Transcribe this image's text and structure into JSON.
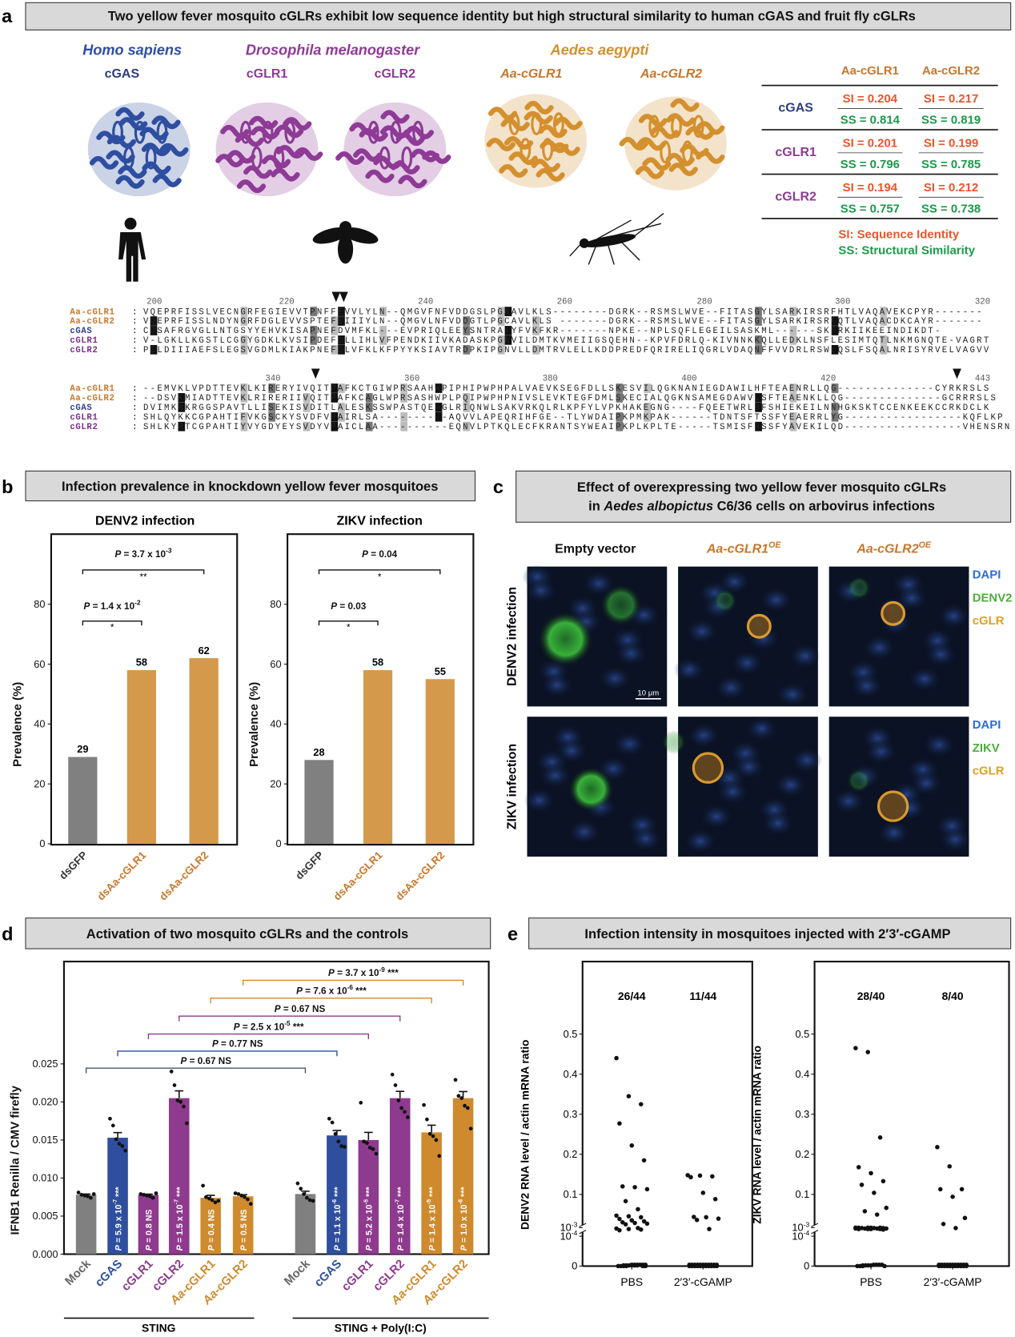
{
  "panel_letters": {
    "a": "a",
    "b": "b",
    "c": "c",
    "d": "d",
    "e": "e"
  },
  "colors": {
    "human": "#2e4ea1",
    "fly": "#8e3a96",
    "aedes": "#d4902e",
    "aa_label": "#c8762a",
    "si": "#e8552a",
    "ss": "#1a9a4a",
    "gray_bar": "#808080",
    "orange_bar": "#d4994a",
    "cgas_bar": "#2f4f9e",
    "cglr_bar": "#8e3a8e",
    "aa_bar": "#cf8a2e"
  },
  "panel_a": {
    "title": "Two yellow fever mosquito cGLRs exhibit low sequence identity but high structural similarity to human cGAS and fruit fly cGLRs",
    "species": [
      {
        "name": "Homo sapiens",
        "proteins": [
          "cGAS"
        ]
      },
      {
        "name": "Drosophila melanogaster",
        "proteins": [
          "cGLR1",
          "cGLR2"
        ]
      },
      {
        "name": "Aedes aegypti",
        "proteins": [
          "Aa-cGLR1",
          "Aa-cGLR2"
        ]
      }
    ],
    "table": {
      "columns": [
        "Aa-cGLR1",
        "Aa-cGLR2"
      ],
      "rows": [
        {
          "label": "cGAS",
          "si": [
            "SI = 0.204",
            "SI = 0.217"
          ],
          "ss": [
            "SS = 0.814",
            "SS = 0.819"
          ]
        },
        {
          "label": "cGLR1",
          "si": [
            "SI = 0.201",
            "SI = 0.199"
          ],
          "ss": [
            "SS = 0.796",
            "SS = 0.785"
          ]
        },
        {
          "label": "cGLR2",
          "si": [
            "SI = 0.194",
            "SI = 0.212"
          ],
          "ss": [
            "SS = 0.757",
            "SS = 0.738"
          ]
        }
      ],
      "legend_si": "SI: Sequence Identity",
      "legend_ss": "SS: Structural Similarity"
    },
    "alignment": [
      {
        "positions": [
          "200",
          "220",
          "240",
          "260",
          "280",
          "300",
          "320"
        ],
        "rows": [
          {
            "name": "Aa-cGLR1",
            "sep": ":",
            "seq": "VQEPRFISSLVECNGRFEGIEVVTPNFFEVVLYLN--QMGVFNFVDDGSLPGAAVLKLS--------DGRK--RSMSLWVE--FITASGYLSARKIRSRFHTLVAQAVEKCPYR-------"
          },
          {
            "name": "Aa-cGLR2",
            "sep": ":",
            "seq": "VQEPRFISSLNDYNGRFDGLEVVSPTEFEIIIYLN--QMGVLNFVDDGTLPGCAVLKLS -------DGRK--RSMSLWVE--FITASGYLSARKIRSRFQTLVAQACDKCAYR-------"
          },
          {
            "name": "cGAS",
            "sep": ":",
            "seq": "CDSAFRGVGLLNTGSYYEHVKISAPNEFDVMFKL---EVPRIQLEEYSNTRAYYFVKFKR-------NPKE--NPLSQFLEGEILSASKML------SKFRKIIKEEINDIKDT-"
          },
          {
            "name": "cGLR1",
            "sep": ":",
            "seq": "V-LGKLLKGSTLCGGYGDKLKVSIPDEFDLLIHLVFPENDKIIVKADASKPGNVILDMTKVMEIIGSQEHN--KPVFDRLQ-KIVNNKKQLLEDKLNSFLESIMTQTLNKMGNQTE-VAGRT"
          },
          {
            "name": "cGLR2",
            "sep": ":",
            "seq": "PELDIIIAEFSLEGSVGDMLKIAKPNEFDLVFKLKFPYYKSIAVTRDPKIPGNVLLDMTRVLELLKDDPREDFQRIRELIQGRLVDAQNFFVVDRLRSWLQSLFSQALNRISYRVELVAGVV"
          }
        ]
      },
      {
        "positions": [
          "340",
          "360",
          "380",
          "400",
          "420",
          "443"
        ],
        "rows": [
          {
            "name": "Aa-cGLR1",
            "sep": ":",
            "seq": "--EMVKLVPDTTEVKLKIRERYIVQITPAFKCTGIWPRSAAHWPIPHIPWPHPALVAEVKSEGFDLLSKESVILQGKNANIEGDAWILHFTEAENRLLQG--------------CYRKRSLS"
          },
          {
            "name": "Aa-cGLR2",
            "sep": ":",
            "seq": "--DSVKMIADTTEVKLRIRERIIVQITPAFKCAGLWPRSASHWPLPQIPWPHPNIVSLEVKTEGFDMLSKECIALQGKNSAMEGDAWVLSFTEAENKLLQG--------------GCRRRSLS"
          },
          {
            "name": "cGAS",
            "sep": ":",
            "seq": "DVIMKRKRGGSPAVTLLISEKISVDITLALESKSSWPASTQE-GLRIQNWLSAKVRKQLRLKPFYLVPKHAKEGNG----FQEETWRLSFSHIEKEILNNHGKSKTCCENKEEKCCRKDCLK"
          },
          {
            "name": "cGLR1",
            "sep": ":",
            "seq": "SHLQYKKCGPAHTIFVKGSCKYSVDFVPAIRLSA----------AQVVLAPEQRIHFGE--TLYWDAIPKPMKPAK------TDNTSFTSSFYEAERRLYG-----------------KQFLKP"
          },
          {
            "name": "cGLR2",
            "sep": ":",
            "seq": "SHLKYRTCGPAHTIYVYGDYEYSVDYVPAICLAA----------EQNVLPTKQLECFKRANTSYWEAIPKPLKPLTE-----TSMISFRSSFYAVEKILQD-----------------VHENSRN"
          }
        ]
      }
    ]
  },
  "panel_b": {
    "title": "Infection prevalence in knockdown yellow fever mosquitoes"
  },
  "panel_c": {
    "title_line1": "Effect of overexpressing two yellow fever mosquito cGLRs",
    "title_line2_pre": "in ",
    "title_line2_italic": "Aedes albopictus",
    "title_line2_post": " C6/36 cells on arbovirus infections",
    "columns": [
      {
        "label": "Empty vector",
        "sup": ""
      },
      {
        "label": "Aa-cGLR1",
        "sup": "OE"
      },
      {
        "label": "Aa-cGLR2",
        "sup": "OE"
      }
    ],
    "rows": [
      {
        "label": "DENV2 infection",
        "legend": [
          "DAPI",
          "DENV2",
          "cGLR"
        ]
      },
      {
        "label": "ZIKV infection",
        "legend": [
          "DAPI",
          "ZIKV",
          "cGLR"
        ]
      }
    ],
    "scale_bar": "10 μm",
    "legend_colors": [
      "#2a6fd6",
      "#4caf3a",
      "#e0a020"
    ]
  },
  "panel_d": {
    "title": "Activation of two mosquito cGLRs and the controls"
  },
  "panel_e": {
    "title": "Infection intensity in mosquitoes injected with 2′3′-cGAMP"
  },
  "chart_data": [
    {
      "type": "bar",
      "title": "DENV2  infection",
      "ylabel": "Prevalence (%)",
      "ylim": [
        0,
        90
      ],
      "yticks": [
        "0",
        "20",
        "40",
        "60",
        "80"
      ],
      "categories": [
        "dsGFP",
        "dsAa-cGLR1",
        "dsAa-cGLR2"
      ],
      "values": [
        29,
        58,
        62
      ],
      "value_labels": [
        "29",
        "58",
        "62"
      ],
      "comparisons": [
        {
          "between": [
            "dsGFP",
            "dsAa-cGLR2"
          ],
          "val": " = 3.7 x 10",
          "exp": "-3",
          "sig": "**"
        },
        {
          "between": [
            "dsGFP",
            "dsAa-cGLR1"
          ],
          "val": " = 1.4 x 10",
          "exp": "-2",
          "sig": "*"
        }
      ]
    },
    {
      "type": "bar",
      "title": "ZIKV infection",
      "ylabel": "Prevalence (%)",
      "ylim": [
        0,
        90
      ],
      "yticks": [
        "0",
        "20",
        "40",
        "60",
        "80"
      ],
      "categories": [
        "dsGFP",
        "dsAa-cGLR1",
        "dsAa-cGLR2"
      ],
      "values": [
        28,
        58,
        55
      ],
      "value_labels": [
        "28",
        "58",
        "55"
      ],
      "comparisons": [
        {
          "between": [
            "dsGFP",
            "dsAa-cGLR2"
          ],
          "val": " = 0.04",
          "exp": "",
          "sig": "*"
        },
        {
          "between": [
            "dsGFP",
            "dsAa-cGLR1"
          ],
          "val": " = 0.03",
          "exp": "",
          "sig": "*"
        }
      ]
    },
    {
      "type": "bar",
      "ylabel": "IFNB1 Renilla / CMV firefly",
      "ylim": [
        0,
        0.03
      ],
      "yticks": [
        "0.000",
        "0.005",
        "0.010",
        "0.015",
        "0.020",
        "0.025"
      ],
      "groups": [
        "STING",
        "STING + Poly(I:C)"
      ],
      "categories": [
        "Mock",
        "cGAS",
        "cGLR1",
        "cGLR2",
        "Aa-cGLR1",
        "Aa-cGLR2",
        "Mock",
        "cGAS",
        "cGLR1",
        "cGLR2",
        "Aa-cGLR1",
        "Aa-cGLR2"
      ],
      "values": [
        0.0078,
        0.0153,
        0.0078,
        0.0205,
        0.0074,
        0.0076,
        0.0079,
        0.0156,
        0.015,
        0.0205,
        0.016,
        0.0205
      ],
      "replicates": [
        [
          0.0081,
          0.0078,
          0.0077,
          0.0076,
          0.0074,
          0.0079
        ],
        [
          0.0178,
          0.0169,
          0.0151,
          0.0145,
          0.0142,
          0.0136
        ],
        [
          0.0079,
          0.0078,
          0.0077,
          0.0076,
          0.0074,
          0.008
        ],
        [
          0.024,
          0.0222,
          0.0202,
          0.02,
          0.0194,
          0.0172
        ],
        [
          0.009,
          0.0075,
          0.0073,
          0.0071,
          0.0068,
          0.007
        ],
        [
          0.008,
          0.0079,
          0.0077,
          0.0075,
          0.0072,
          0.0066
        ],
        [
          0.0093,
          0.0086,
          0.0079,
          0.0074,
          0.0071,
          0.007
        ],
        [
          0.0178,
          0.0173,
          0.0158,
          0.0148,
          0.0142,
          0.0141
        ],
        [
          0.0199,
          0.0148,
          0.0146,
          0.014,
          0.0138,
          0.0132
        ],
        [
          0.0236,
          0.0222,
          0.0202,
          0.0192,
          0.0187,
          0.018
        ],
        [
          0.0196,
          0.0177,
          0.0158,
          0.0155,
          0.015,
          0.0129
        ],
        [
          0.0229,
          0.0208,
          0.0205,
          0.0195,
          0.0192,
          0.0165
        ]
      ],
      "bar_colors": [
        "gray",
        "cgas",
        "cglr",
        "cglr",
        "aa",
        "aa",
        "gray",
        "cgas",
        "cglr",
        "cglr",
        "aa",
        "aa"
      ],
      "in_bar_labels": [
        null,
        {
          "val": " = 5.9 x 10",
          "exp": "-7",
          "sig": "***"
        },
        {
          "val": " = 0.8",
          "exp": "",
          "sig": "NS"
        },
        {
          "val": " = 1.5 x 10",
          "exp": "-7",
          "sig": "***"
        },
        {
          "val": " = 0.4",
          "exp": "",
          "sig": "NS"
        },
        {
          "val": " = 0.5",
          "exp": "",
          "sig": "NS"
        },
        null,
        {
          "val": " = 1.1 x 10",
          "exp": "-6",
          "sig": "***"
        },
        {
          "val": " = 5.2 x 10",
          "exp": "-5",
          "sig": "***"
        },
        {
          "val": " = 1.4 x 10",
          "exp": "-7",
          "sig": "***"
        },
        {
          "val": " = 1.4 x 10",
          "exp": "-5",
          "sig": "***"
        },
        {
          "val": " = 1.0 x 10",
          "exp": "-8",
          "sig": "***"
        }
      ],
      "comparisons": [
        {
          "between": [
            0,
            6
          ],
          "val": " = 0.67",
          "exp": "",
          "sig": "NS",
          "color": "#4a5560"
        },
        {
          "between": [
            1,
            7
          ],
          "val": " = 0.77",
          "exp": "",
          "sig": "NS",
          "color": "#2f4f9e"
        },
        {
          "between": [
            2,
            8
          ],
          "val": " = 2.5 x 10",
          "exp": "-5",
          "sig": "***",
          "color": "#8e3a8e"
        },
        {
          "between": [
            3,
            9
          ],
          "val": " = 0.67",
          "exp": "",
          "sig": "NS",
          "color": "#8e3a8e"
        },
        {
          "between": [
            4,
            10
          ],
          "val": " = 7.6 x 10",
          "exp": "-6",
          "sig": "***",
          "color": "#cf8a2e"
        },
        {
          "between": [
            5,
            11
          ],
          "val": " = 3.7 x 10",
          "exp": "-9",
          "sig": "***",
          "color": "#cf8a2e"
        }
      ]
    },
    {
      "type": "scatter",
      "ylabel": "DENV2 RNA level / actin mRNA ratio",
      "categories": [
        "PBS",
        "2′3′-cGAMP"
      ],
      "counts": [
        "26/44",
        "11/44"
      ],
      "yticks": [
        {
          "v": 0,
          "t": "0"
        },
        {
          "v": 0.0001,
          "t": "10",
          "e": "-4"
        },
        {
          "v": 0.001,
          "t": "10",
          "e": "-3"
        },
        {
          "v": 0.1,
          "t": "0.1"
        },
        {
          "v": 0.2,
          "t": "0.2"
        },
        {
          "v": 0.3,
          "t": "0.3"
        },
        {
          "v": 0.4,
          "t": "0.4"
        },
        {
          "v": 0.5,
          "t": "0.5"
        }
      ],
      "axis_break": true,
      "values": [
        [
          0.44,
          0.345,
          0.325,
          0.277,
          0.222,
          0.185,
          0.12,
          0.118,
          0.113,
          0.08,
          0.056,
          0.037,
          0.035,
          0.032,
          0.027,
          0.023,
          0.02,
          0.017,
          0.015,
          0.013,
          0.011,
          0.0009,
          0.0008,
          0.0007,
          0.0006,
          0.0005,
          0,
          0,
          0,
          0,
          0,
          0,
          0,
          0,
          0,
          0,
          0,
          0,
          0,
          0,
          0,
          0,
          0,
          0
        ],
        [
          0.148,
          0.147,
          0.145,
          0.143,
          0.104,
          0.086,
          0.033,
          0.032,
          0.028,
          0.024,
          0.0007,
          0,
          0,
          0,
          0,
          0,
          0,
          0,
          0,
          0,
          0,
          0,
          0,
          0,
          0,
          0,
          0,
          0,
          0,
          0,
          0,
          0,
          0,
          0,
          0,
          0,
          0,
          0,
          0,
          0,
          0,
          0,
          0,
          0
        ]
      ]
    },
    {
      "type": "scatter",
      "ylabel": "ZIKV RNA level / actin mRNA ratio",
      "categories": [
        "PBS",
        "2′3′-cGAMP"
      ],
      "counts": [
        "28/40",
        "8/40"
      ],
      "yticks": [
        {
          "v": 0,
          "t": "0"
        },
        {
          "v": 0.0001,
          "t": "10",
          "e": "-4"
        },
        {
          "v": 0.001,
          "t": "10",
          "e": "-3"
        },
        {
          "v": 0.1,
          "t": "0.1"
        },
        {
          "v": 0.2,
          "t": "0.2"
        },
        {
          "v": 0.3,
          "t": "0.3"
        },
        {
          "v": 0.4,
          "t": "0.4"
        },
        {
          "v": 0.5,
          "t": "0.5"
        }
      ],
      "axis_break": true,
      "values": [
        [
          0.465,
          0.455,
          0.242,
          0.168,
          0.153,
          0.133,
          0.124,
          0.104,
          0.06,
          0.05,
          0.04,
          0.0012,
          0.0011,
          0.0011,
          0.001,
          0.001,
          0.0009,
          0.0009,
          0.0009,
          0.0008,
          0.0008,
          0.0008,
          0.0008,
          0.0007,
          0.0007,
          0.0007,
          0.0007,
          0.0006,
          0,
          0,
          0,
          0,
          0,
          0,
          0,
          0,
          0,
          0,
          0,
          0
        ],
        [
          0.218,
          0.17,
          0.113,
          0.113,
          0.093,
          0.03,
          0.012,
          0.0009,
          0,
          0,
          0,
          0,
          0,
          0,
          0,
          0,
          0,
          0,
          0,
          0,
          0,
          0,
          0,
          0,
          0,
          0,
          0,
          0,
          0,
          0,
          0,
          0,
          0,
          0,
          0,
          0,
          0,
          0,
          0,
          0
        ]
      ]
    }
  ]
}
